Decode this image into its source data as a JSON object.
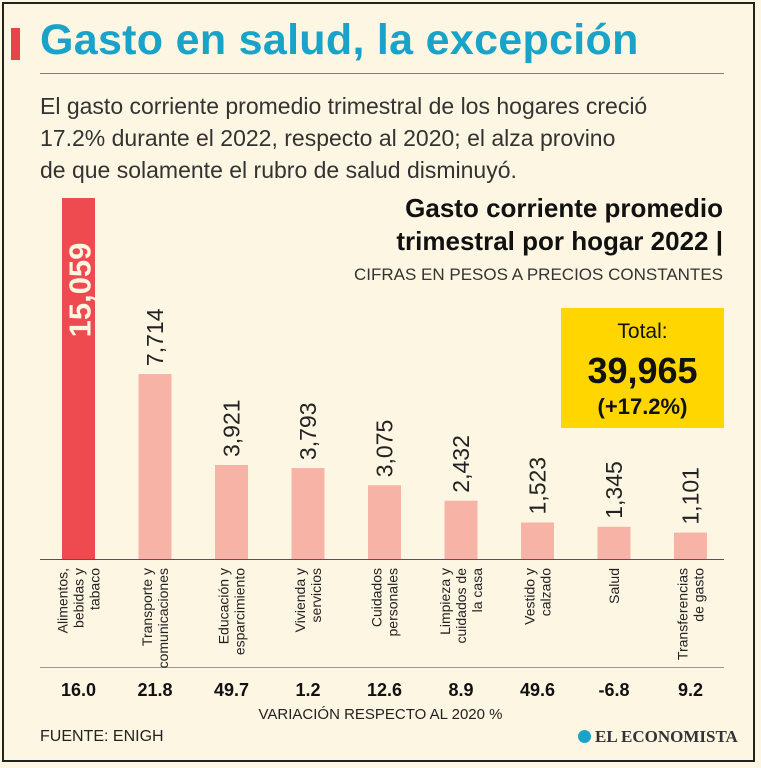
{
  "title": "Gasto en salud, la excepción",
  "subtitle_lines": [
    "El gasto corriente promedio trimestral de los hogares creció",
    "17.2% durante el 2022, respecto al 2020; el alza provino",
    "de que solamente el rubro de salud disminuyó."
  ],
  "colors": {
    "accent": "#e8434a",
    "title": "#1aa3c8",
    "highlight_bar": "#ee4b50",
    "bar": "#f6b3a6",
    "total_box": "#ffd600",
    "background": "#fdf6e3"
  },
  "total": {
    "label": "Total:",
    "value": "39,965",
    "change": "(+17.2%)"
  },
  "source": "FUENTE: ENIGH",
  "brand": {
    "icon": "globe-icon",
    "name": "EL ECONOMISTA"
  },
  "chart_data": {
    "type": "bar",
    "title_lines": [
      "Gasto corriente promedio",
      "trimestral por hogar 2022 |"
    ],
    "ylabel": "CIFRAS EN PESOS A PRECIOS CONSTANTES",
    "ylim": [
      0,
      15059
    ],
    "grid": false,
    "categories": [
      [
        "Alimentos,",
        "bebidas y",
        "tabaco"
      ],
      [
        "Transporte y",
        "comunicaciones"
      ],
      [
        "Educación y",
        "esparcimiento"
      ],
      [
        "Vivienda y",
        "servicios"
      ],
      [
        "Cuidados",
        "personales"
      ],
      [
        "Limpieza y",
        "cuidados de",
        "la casa"
      ],
      [
        "Vestido y",
        "calzado"
      ],
      [
        "Salud"
      ],
      [
        "Transferencias",
        "de gasto"
      ]
    ],
    "values": [
      15059,
      7714,
      3921,
      3793,
      3075,
      2432,
      1523,
      1345,
      1101
    ],
    "value_labels": [
      "15,059",
      "7,714",
      "3,921",
      "3,793",
      "3,075",
      "2,432",
      "1,523",
      "1,345",
      "1,101"
    ],
    "highlight_index": 0,
    "variation_label": "VARIACIÓN RESPECTO AL 2020 %",
    "variation": [
      "16.0",
      "21.8",
      "49.7",
      "1.2",
      "12.6",
      "8.9",
      "49.6",
      "-6.8",
      "9.2"
    ]
  }
}
